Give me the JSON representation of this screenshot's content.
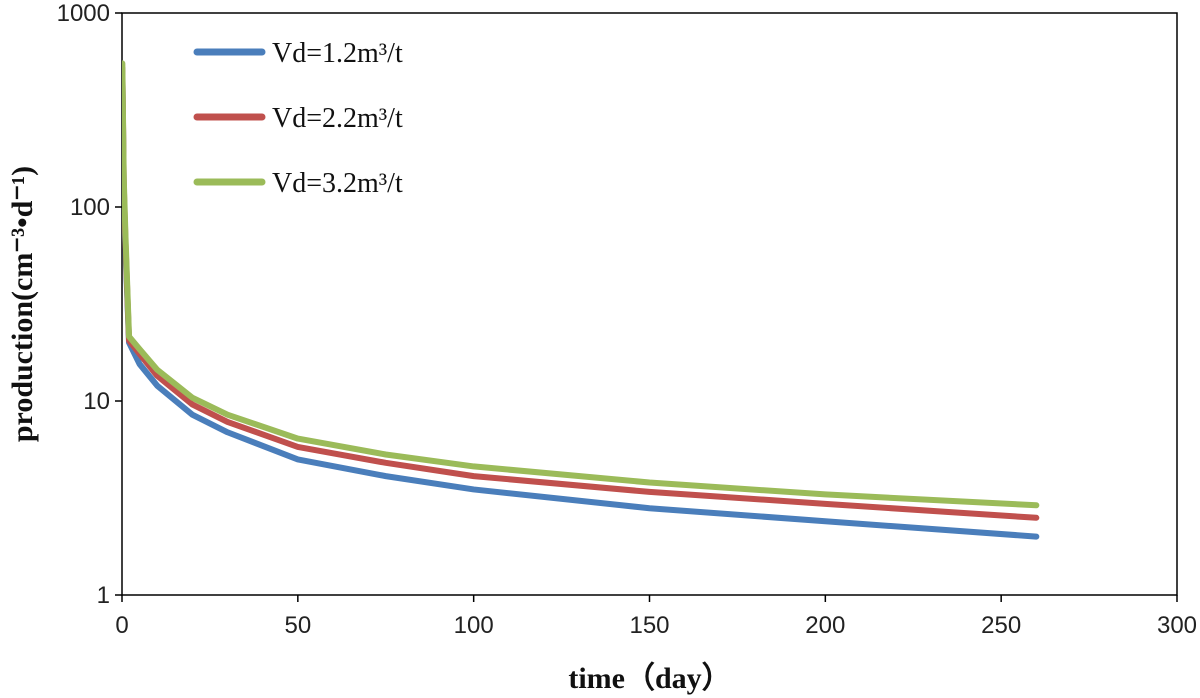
{
  "chart_data": {
    "type": "line",
    "title": "",
    "xlabel": "time（day）",
    "ylabel": "production(cm⁻³•d⁻¹)",
    "xlim": [
      0,
      300
    ],
    "ylim": [
      1,
      1000
    ],
    "yscale": "log",
    "x_ticks": [
      "0",
      "50",
      "100",
      "150",
      "200",
      "250",
      "300"
    ],
    "y_ticks": [
      "1",
      "10",
      "100",
      "1000"
    ],
    "grid": false,
    "legend_position": "top-left",
    "x": [
      0.1,
      0.5,
      1,
      2,
      5,
      10,
      20,
      30,
      50,
      75,
      100,
      150,
      200,
      260
    ],
    "series": [
      {
        "name": "Vd=1.2m³/t",
        "color": "#4a7ebb",
        "values": [
          500,
          120,
          60,
          20,
          15.5,
          12,
          8.5,
          6.9,
          5.0,
          4.1,
          3.5,
          2.8,
          2.4,
          2.0
        ]
      },
      {
        "name": "Vd=2.2m³/t",
        "color": "#c0504d",
        "values": [
          520,
          130,
          65,
          20.5,
          17.5,
          13.5,
          9.6,
          7.8,
          5.8,
          4.8,
          4.1,
          3.4,
          2.95,
          2.5
        ]
      },
      {
        "name": "Vd=3.2m³/t",
        "color": "#9bbb59",
        "values": [
          550,
          140,
          70,
          21.5,
          18.5,
          14.5,
          10.4,
          8.5,
          6.4,
          5.3,
          4.6,
          3.8,
          3.3,
          2.9
        ]
      }
    ]
  }
}
